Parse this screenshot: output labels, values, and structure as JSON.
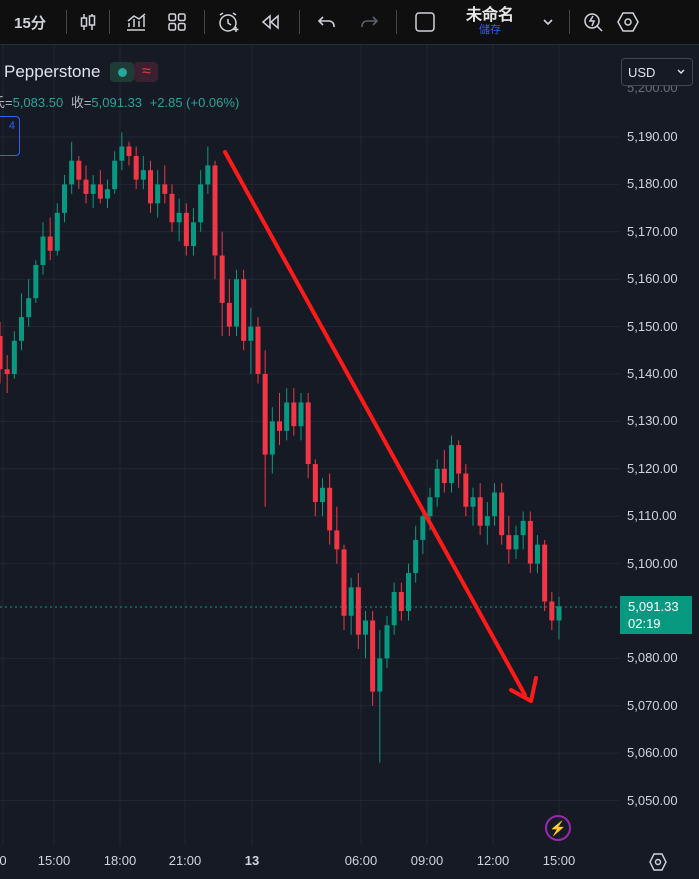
{
  "toolbar": {
    "interval": "15分",
    "layout_name": "未命名",
    "layout_status": "儲存"
  },
  "legend": {
    "broker": "Pepperstone",
    "badge_wave": "≈",
    "ohlc_prefix": "氐=",
    "low_value": "5,083.50",
    "close_label": "收=",
    "close_value": "5,091.33",
    "change": "+2.85 (+0.06%)",
    "side_tab": "4"
  },
  "currency": {
    "selected": "USD"
  },
  "price_axis": {
    "labels": [
      "5,190.00",
      "5,180.00",
      "5,170.00",
      "5,160.00",
      "5,150.00",
      "5,140.00",
      "5,130.00",
      "5,120.00",
      "5,110.00",
      "5,100.00",
      "5,080.00",
      "5,070.00",
      "5,060.00",
      "5,050.00"
    ],
    "top_partial": "5,200.00"
  },
  "time_axis": {
    "labels": [
      "0",
      "15:00",
      "18:00",
      "21:00",
      "13",
      "06:00",
      "09:00",
      "12:00",
      "15:00"
    ]
  },
  "last_price": {
    "price": "5,091.33",
    "countdown": "02:19"
  },
  "colors": {
    "bull": "#089981",
    "bear": "#f23645",
    "arrow": "#ff1a1a",
    "background": "#161a25"
  },
  "chart_data": {
    "type": "candlestick",
    "symbol": "Pepperstone",
    "timeframe": "15分",
    "ylim": [
      5042,
      5204
    ],
    "series": [
      {
        "values": [
          [
            5148,
            5151,
            5138,
            5141
          ],
          [
            5141,
            5144,
            5136,
            5140
          ],
          [
            5140,
            5149,
            5139,
            5147
          ],
          [
            5147,
            5157,
            5145,
            5152
          ],
          [
            5152,
            5160,
            5150,
            5156
          ],
          [
            5156,
            5164,
            5155,
            5163
          ],
          [
            5163,
            5172,
            5161,
            5169
          ],
          [
            5169,
            5173,
            5164,
            5166
          ],
          [
            5166,
            5176,
            5165,
            5174
          ],
          [
            5174,
            5182,
            5172,
            5180
          ],
          [
            5180,
            5189,
            5178,
            5185
          ],
          [
            5185,
            5186,
            5179,
            5181
          ],
          [
            5181,
            5184,
            5176,
            5178
          ],
          [
            5178,
            5182,
            5175,
            5180
          ],
          [
            5180,
            5183,
            5176,
            5177
          ],
          [
            5177,
            5181,
            5175,
            5179
          ],
          [
            5179,
            5187,
            5178,
            5185
          ],
          [
            5185,
            5191,
            5183,
            5188
          ],
          [
            5188,
            5189,
            5184,
            5186
          ],
          [
            5186,
            5188,
            5179,
            5181
          ],
          [
            5181,
            5186,
            5179,
            5183
          ],
          [
            5183,
            5185,
            5174,
            5176
          ],
          [
            5176,
            5183,
            5173,
            5180
          ],
          [
            5180,
            5184,
            5176,
            5178
          ],
          [
            5178,
            5180,
            5170,
            5172
          ],
          [
            5172,
            5177,
            5168,
            5174
          ],
          [
            5174,
            5176,
            5165,
            5167
          ],
          [
            5167,
            5175,
            5165,
            5172
          ],
          [
            5172,
            5183,
            5170,
            5180
          ],
          [
            5180,
            5188,
            5178,
            5184
          ],
          [
            5184,
            5185,
            5160,
            5165
          ],
          [
            5165,
            5170,
            5148,
            5155
          ],
          [
            5155,
            5160,
            5148,
            5150
          ],
          [
            5150,
            5162,
            5148,
            5160
          ],
          [
            5160,
            5162,
            5145,
            5147
          ],
          [
            5147,
            5154,
            5140,
            5150
          ],
          [
            5150,
            5152,
            5138,
            5140
          ],
          [
            5140,
            5145,
            5112,
            5123
          ],
          [
            5123,
            5133,
            5119,
            5130
          ],
          [
            5130,
            5136,
            5125,
            5128
          ],
          [
            5128,
            5137,
            5126,
            5134
          ],
          [
            5134,
            5137,
            5127,
            5129
          ],
          [
            5129,
            5136,
            5126,
            5134
          ],
          [
            5134,
            5136,
            5118,
            5121
          ],
          [
            5121,
            5122,
            5110,
            5113
          ],
          [
            5113,
            5118,
            5110,
            5116
          ],
          [
            5116,
            5119,
            5104,
            5107
          ],
          [
            5107,
            5112,
            5100,
            5103
          ],
          [
            5103,
            5104,
            5086,
            5089
          ],
          [
            5089,
            5097,
            5085,
            5095
          ],
          [
            5095,
            5098,
            5082,
            5085
          ],
          [
            5085,
            5090,
            5080,
            5088
          ],
          [
            5088,
            5090,
            5070,
            5073
          ],
          [
            5073,
            5086,
            5058,
            5080
          ],
          [
            5080,
            5089,
            5078,
            5087
          ],
          [
            5087,
            5096,
            5085,
            5094
          ],
          [
            5094,
            5096,
            5088,
            5090
          ],
          [
            5090,
            5100,
            5088,
            5098
          ],
          [
            5098,
            5108,
            5096,
            5105
          ],
          [
            5105,
            5112,
            5102,
            5110
          ],
          [
            5110,
            5116,
            5107,
            5114
          ],
          [
            5114,
            5122,
            5112,
            5120
          ],
          [
            5120,
            5124,
            5115,
            5117
          ],
          [
            5117,
            5127,
            5115,
            5125
          ],
          [
            5125,
            5126,
            5116,
            5119
          ],
          [
            5119,
            5121,
            5110,
            5112
          ],
          [
            5112,
            5116,
            5108,
            5114
          ],
          [
            5114,
            5117,
            5106,
            5108
          ],
          [
            5108,
            5113,
            5104,
            5110
          ],
          [
            5110,
            5117,
            5108,
            5115
          ],
          [
            5115,
            5117,
            5104,
            5106
          ],
          [
            5106,
            5110,
            5100,
            5103
          ],
          [
            5103,
            5108,
            5101,
            5106
          ],
          [
            5106,
            5111,
            5103,
            5109
          ],
          [
            5109,
            5111,
            5098,
            5100
          ],
          [
            5100,
            5106,
            5098,
            5104
          ],
          [
            5104,
            5105,
            5090,
            5092
          ],
          [
            5092,
            5094,
            5086,
            5088
          ],
          [
            5088,
            5093,
            5084,
            5091
          ]
        ]
      }
    ],
    "annotation": {
      "type": "arrow",
      "from_price": 5192,
      "to_price": 5072,
      "direction": "down"
    }
  }
}
